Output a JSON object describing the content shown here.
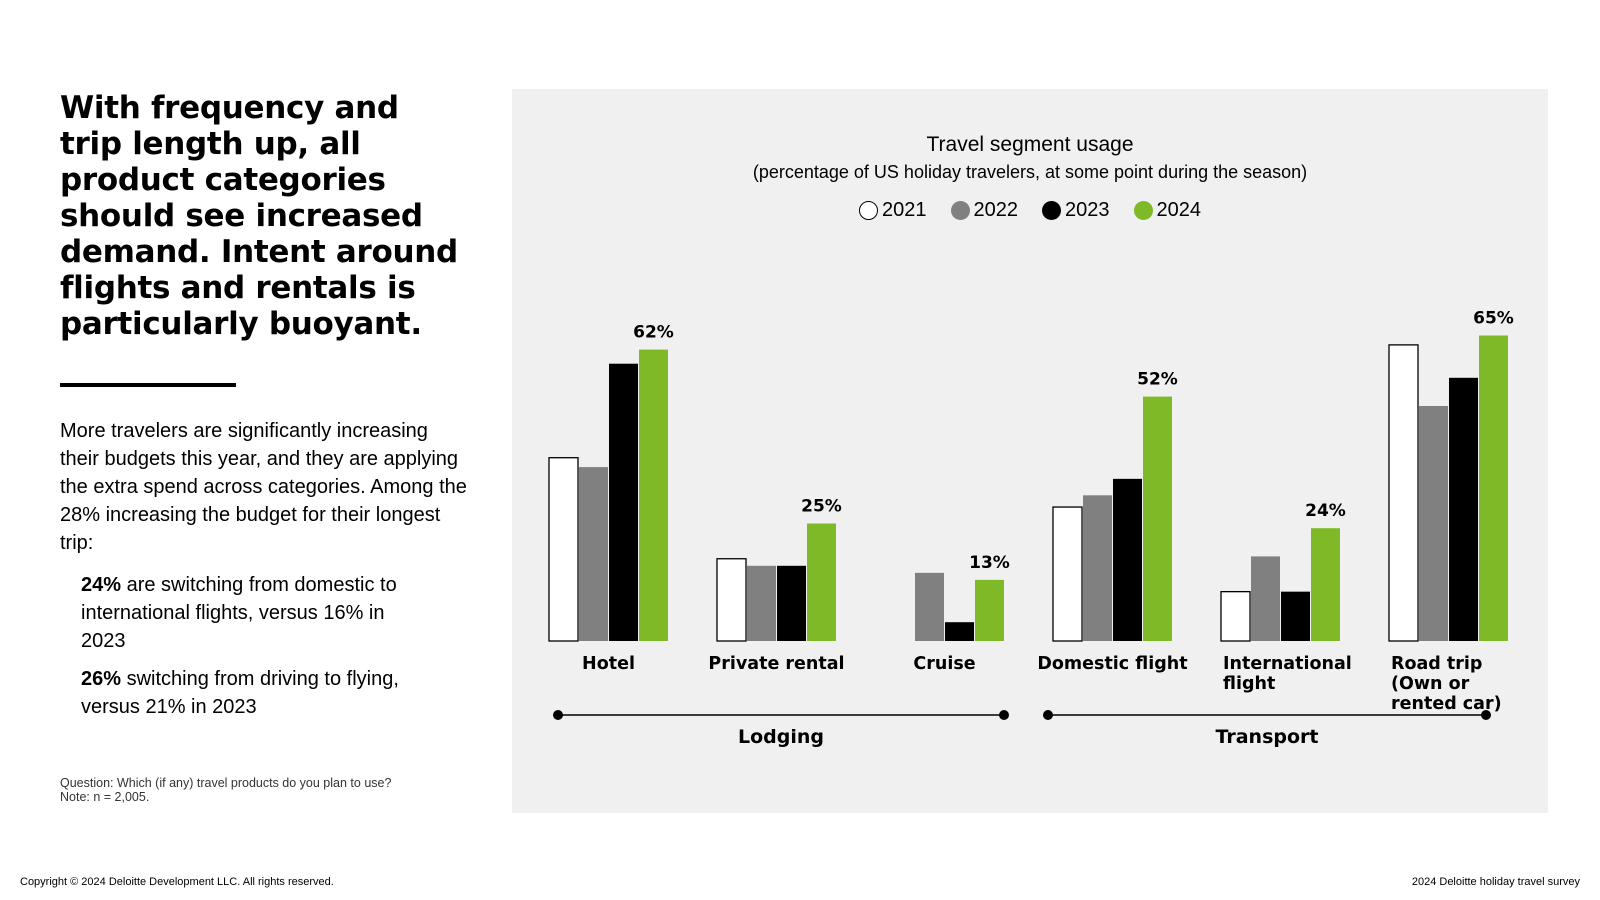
{
  "headline": "With frequency and trip length up, all product categories should see increased demand. Intent around flights and rentals is particularly buoyant.",
  "body_text": "More travelers are significantly increasing their budgets this year, and they are applying the extra spend across categories. Among the 28% increasing the budget for their longest trip:",
  "bullets": [
    {
      "bold": "24%",
      "text": " are switching from domestic to international flights, versus 16% in 2023"
    },
    {
      "bold": "26%",
      "text": " switching from driving to flying, versus 21% in 2023"
    }
  ],
  "note": {
    "question": "Question: Which (if any) travel products do you plan to use?",
    "n": "Note: n = 2,005."
  },
  "footer": {
    "copyright": "Copyright © 2024 Deloitte Development LLC. All rights reserved.",
    "survey": "2024 Deloitte holiday travel survey"
  },
  "colors": {
    "2021": "#ffffff",
    "2022": "#808080",
    "2023": "#000000",
    "2024": "#80b927",
    "panel": "#f0f0f0"
  },
  "chart_data": {
    "type": "bar",
    "title": "Travel segment usage",
    "subtitle": "(percentage of US holiday travelers, at some point during the season)",
    "ylim": [
      0,
      70
    ],
    "categories": [
      "Hotel",
      "Private rental",
      "Cruise",
      "Domestic flight",
      "International flight",
      "Road trip (Own or rented car)"
    ],
    "category_lines": [
      [
        "Hotel"
      ],
      [
        "Private rental"
      ],
      [
        "Cruise"
      ],
      [
        "Domestic flight"
      ],
      [
        "International",
        "flight"
      ],
      [
        "Road trip",
        "(Own or",
        "rented car)"
      ]
    ],
    "series": [
      {
        "name": "2021",
        "values": [
          39,
          17.5,
          0,
          28.5,
          10.5,
          63
        ]
      },
      {
        "name": "2022",
        "values": [
          37,
          16,
          14.5,
          31,
          18,
          50
        ]
      },
      {
        "name": "2023",
        "values": [
          59,
          16,
          4,
          34.5,
          10.5,
          56
        ]
      },
      {
        "name": "2024",
        "values": [
          62,
          25,
          13,
          52,
          24,
          65
        ]
      }
    ],
    "labeled_values": [
      "62%",
      "25%",
      "13%",
      "52%",
      "24%",
      "65%"
    ],
    "groups": [
      {
        "label": "Lodging",
        "categories": [
          0,
          1,
          2
        ]
      },
      {
        "label": "Transport",
        "categories": [
          3,
          4,
          5
        ]
      }
    ]
  }
}
